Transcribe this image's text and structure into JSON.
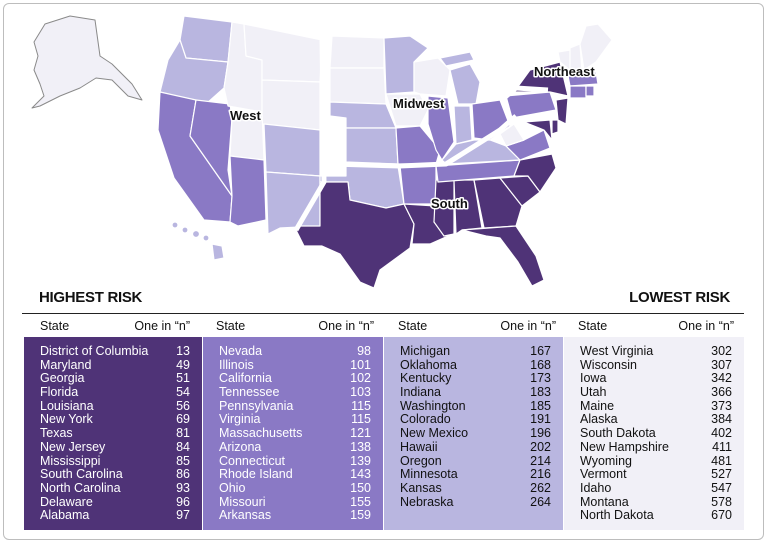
{
  "colors": {
    "tier1": "#4f3377",
    "tier2": "#8a79c5",
    "tier3": "#b9b6e0",
    "tier4": "#f1f0f7",
    "background": "#ffffff"
  },
  "map": {
    "regions": [
      "West",
      "Midwest",
      "South",
      "Northeast"
    ]
  },
  "table": {
    "highest_label": "HIGHEST RISK",
    "lowest_label": "LOWEST RISK",
    "state_header": "State",
    "value_header": "One in “n”",
    "columns": [
      {
        "rows": [
          {
            "state": "District of Columbia",
            "n": "13"
          },
          {
            "state": "Maryland",
            "n": "49"
          },
          {
            "state": "Georgia",
            "n": "51"
          },
          {
            "state": "Florida",
            "n": "54"
          },
          {
            "state": "Louisiana",
            "n": "56"
          },
          {
            "state": "New York",
            "n": "69"
          },
          {
            "state": "Texas",
            "n": "81"
          },
          {
            "state": "New Jersey",
            "n": "84"
          },
          {
            "state": "Mississippi",
            "n": "85"
          },
          {
            "state": "South Carolina",
            "n": "86"
          },
          {
            "state": "North Carolina",
            "n": "93"
          },
          {
            "state": "Delaware",
            "n": "96"
          },
          {
            "state": "Alabama",
            "n": "97"
          }
        ]
      },
      {
        "rows": [
          {
            "state": "Nevada",
            "n": "98"
          },
          {
            "state": "Illinois",
            "n": "101"
          },
          {
            "state": "California",
            "n": "102"
          },
          {
            "state": "Tennessee",
            "n": "103"
          },
          {
            "state": "Pennsylvania",
            "n": "115"
          },
          {
            "state": "Virginia",
            "n": "115"
          },
          {
            "state": "Massachusetts",
            "n": "121"
          },
          {
            "state": "Arizona",
            "n": "138"
          },
          {
            "state": "Connecticut",
            "n": "139"
          },
          {
            "state": "Rhode Island",
            "n": "143"
          },
          {
            "state": "Ohio",
            "n": "150"
          },
          {
            "state": "Missouri",
            "n": "155"
          },
          {
            "state": "Arkansas",
            "n": "159"
          }
        ]
      },
      {
        "rows": [
          {
            "state": "Michigan",
            "n": "167"
          },
          {
            "state": "Oklahoma",
            "n": "168"
          },
          {
            "state": "Kentucky",
            "n": "173"
          },
          {
            "state": "Indiana",
            "n": "183"
          },
          {
            "state": "Washington",
            "n": "185"
          },
          {
            "state": "Colorado",
            "n": "191"
          },
          {
            "state": "New Mexico",
            "n": "196"
          },
          {
            "state": "Hawaii",
            "n": "202"
          },
          {
            "state": "Oregon",
            "n": "214"
          },
          {
            "state": "Minnesota",
            "n": "216"
          },
          {
            "state": "Kansas",
            "n": "262"
          },
          {
            "state": "Nebraska",
            "n": "264"
          }
        ]
      },
      {
        "rows": [
          {
            "state": "West Virginia",
            "n": "302"
          },
          {
            "state": "Wisconsin",
            "n": "307"
          },
          {
            "state": "Iowa",
            "n": "342"
          },
          {
            "state": "Utah",
            "n": "366"
          },
          {
            "state": "Maine",
            "n": "373"
          },
          {
            "state": "Alaska",
            "n": "384"
          },
          {
            "state": "South Dakota",
            "n": "402"
          },
          {
            "state": "New Hampshire",
            "n": "411"
          },
          {
            "state": "Wyoming",
            "n": "481"
          },
          {
            "state": "Vermont",
            "n": "527"
          },
          {
            "state": "Idaho",
            "n": "547"
          },
          {
            "state": "Montana",
            "n": "578"
          },
          {
            "state": "North Dakota",
            "n": "670"
          }
        ]
      }
    ]
  }
}
